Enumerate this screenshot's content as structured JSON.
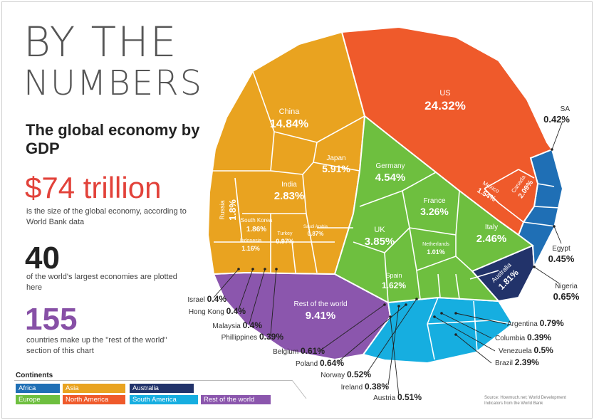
{
  "header": {
    "title_line1": "BY THE",
    "title_line2": "NUMBERS",
    "subtitle": "The global economy by GDP"
  },
  "stats": [
    {
      "value": "$74 trillion",
      "text": "is the size of the global economy, according to World Bank data"
    },
    {
      "value": "40",
      "text": "of the world's largest economies are plotted here"
    },
    {
      "value": "155",
      "text": "countries make up the \"rest of the world\" section of this chart"
    }
  ],
  "legend": {
    "title": "Continents",
    "items": [
      {
        "label": "Africa",
        "color": "#1f6fb5"
      },
      {
        "label": "Asia",
        "color": "#e9a320"
      },
      {
        "label": "Australia",
        "color": "#22336a"
      },
      {
        "label": "Europe",
        "color": "#6ebf3f"
      },
      {
        "label": "North America",
        "color": "#ef5a2b"
      },
      {
        "label": "South America",
        "color": "#16aee0"
      },
      {
        "label": "Rest of the world",
        "color": "#8b56ad"
      }
    ]
  },
  "source": "Source: Howmuch.net; World Development Indicators from the World Bank",
  "chart_data": {
    "type": "voronoi-treemap",
    "title": "The global economy by GDP",
    "unit": "% of global GDP",
    "series": [
      {
        "name": "North America",
        "color": "#ef5a2b",
        "items": [
          {
            "label": "US",
            "value": "24.32%"
          },
          {
            "label": "Canada",
            "value": "2.09%"
          },
          {
            "label": "Mexico",
            "value": "1.54%"
          }
        ]
      },
      {
        "name": "Asia",
        "color": "#e9a320",
        "items": [
          {
            "label": "China",
            "value": "14.84%"
          },
          {
            "label": "Japan",
            "value": "5.91%"
          },
          {
            "label": "India",
            "value": "2.83%"
          },
          {
            "label": "Russia",
            "value": "1.8%"
          },
          {
            "label": "South Korea",
            "value": "1.86%"
          },
          {
            "label": "Indonesia",
            "value": "1.16%"
          },
          {
            "label": "Turkey",
            "value": "0.97%"
          },
          {
            "label": "Saudi Arabia",
            "value": "0.87%"
          },
          {
            "label": "Israel",
            "value": "0.4%"
          },
          {
            "label": "Hong Kong",
            "value": "0.4%"
          },
          {
            "label": "Malaysia",
            "value": "0.4%"
          },
          {
            "label": "Phillippines",
            "value": "0.39%"
          }
        ]
      },
      {
        "name": "Europe",
        "color": "#6ebf3f",
        "items": [
          {
            "label": "Germany",
            "value": "4.54%"
          },
          {
            "label": "France",
            "value": "3.26%"
          },
          {
            "label": "UK",
            "value": "3.85%"
          },
          {
            "label": "Italy",
            "value": "2.46%"
          },
          {
            "label": "Spain",
            "value": "1.62%"
          },
          {
            "label": "Netherlands",
            "value": "1.01%"
          },
          {
            "label": "Belgium",
            "value": "0.61%"
          },
          {
            "label": "Poland",
            "value": "0.64%"
          },
          {
            "label": "Norway",
            "value": "0.52%"
          },
          {
            "label": "Ireland",
            "value": "0.38%"
          },
          {
            "label": "Austria",
            "value": "0.51%"
          }
        ]
      },
      {
        "name": "Australia",
        "color": "#22336a",
        "items": [
          {
            "label": "Australia",
            "value": "1.81%"
          }
        ]
      },
      {
        "name": "Africa",
        "color": "#1f6fb5",
        "items": [
          {
            "label": "SA",
            "value": "0.42%"
          },
          {
            "label": "Egypt",
            "value": "0.45%"
          },
          {
            "label": "Nigeria",
            "value": "0.65%"
          }
        ]
      },
      {
        "name": "South America",
        "color": "#16aee0",
        "items": [
          {
            "label": "Brazil",
            "value": "2.39%"
          },
          {
            "label": "Argentina",
            "value": "0.79%"
          },
          {
            "label": "Columbia",
            "value": "0.39%"
          },
          {
            "label": "Venezuela",
            "value": "0.5%"
          }
        ]
      },
      {
        "name": "Rest of the world",
        "color": "#8b56ad",
        "items": [
          {
            "label": "Rest of the world",
            "value": "9.41%"
          }
        ]
      }
    ]
  }
}
